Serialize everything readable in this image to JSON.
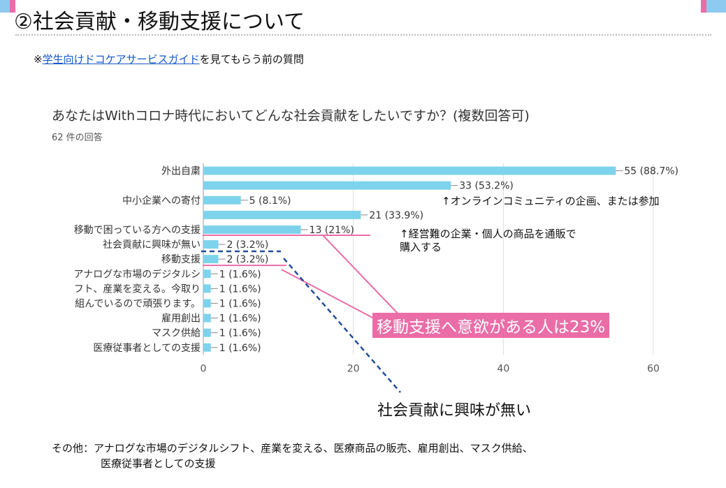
{
  "slide": {
    "title": "②社会貢献・移動支援について",
    "guide_prefix": "※",
    "guide_link": "学生向けドコケアサービスガイド",
    "guide_suffix": "を見てもらう前の質問",
    "footer_line1": "その他：アナログな市場のデジタルシフト、産業を変える、医療商品の販売、雇用創出、マスク供給、",
    "footer_line2": "医療従事者としての支援",
    "colors": {
      "accent_pink": "#ea6da7",
      "accent_blue": "#8ec9f0",
      "bar": "#7ed3ec",
      "dash_blue": "#1f4e9c"
    }
  },
  "annotations": {
    "online_community": "↑オンラインコミュニティの企画、または参加",
    "mail_order_line1": "↑経営難の企業・個人の商品を通販で",
    "mail_order_line2": "購入する",
    "mobility_callout": "移動支援へ意欲がある人は23%",
    "no_interest_callout": "社会貢献に興味が無い"
  },
  "chart_data": {
    "type": "bar",
    "orientation": "horizontal",
    "title": "あなたはWithコロナ時代においてどんな社会貢献をしたいですか？(複数回答可)",
    "subtitle": "62 件の回答",
    "categories": [
      "外出自粛",
      "",
      "中小企業への寄付",
      "",
      "移動で困っている方への支援",
      "社会貢献に興味が無い",
      "移動支援",
      "アナログな市場のデジタルシ",
      "フト、産業を変える。今取り",
      "組んでいるので頑張ります。",
      "雇用創出",
      "マスク供給",
      "医療従事者としての支援"
    ],
    "values": [
      55,
      33,
      5,
      21,
      13,
      2,
      2,
      1,
      1,
      1,
      1,
      1,
      1
    ],
    "data_labels": [
      "55 (88.7%)",
      "33 (53.2%)",
      "5 (8.1%)",
      "21 (33.9%)",
      "13 (21%)",
      "2 (3.2%)",
      "2 (3.2%)",
      "1 (1.6%)",
      "1 (1.6%)",
      "1 (1.6%)",
      "1 (1.6%)",
      "1 (1.6%)",
      "1 (1.6%)"
    ],
    "xlim": [
      0,
      60
    ],
    "xticks": [
      "0",
      "20",
      "40",
      "60"
    ],
    "grid": true,
    "bar_color": "#7ed3ec"
  }
}
